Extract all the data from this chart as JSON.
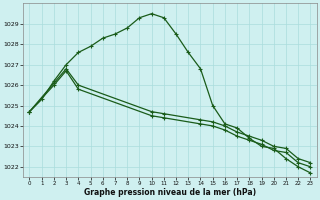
{
  "background_color": "#cff0f0",
  "grid_color": "#aadddd",
  "line_color": "#1a5c1a",
  "xlabel": "Graphe pression niveau de la mer (hPa)",
  "ylim": [
    1021.5,
    1030.0
  ],
  "xlim": [
    -0.5,
    23.5
  ],
  "yticks": [
    1022,
    1023,
    1024,
    1025,
    1026,
    1027,
    1028,
    1029
  ],
  "xticks": [
    0,
    1,
    2,
    3,
    4,
    5,
    6,
    7,
    8,
    9,
    10,
    11,
    12,
    13,
    14,
    15,
    16,
    17,
    18,
    19,
    20,
    21,
    22,
    23
  ],
  "series1_x": [
    0,
    1,
    2,
    3,
    4,
    5,
    6,
    7,
    8,
    9,
    10,
    11,
    12,
    13,
    14,
    15,
    16,
    17,
    18,
    19,
    20,
    21,
    22,
    23
  ],
  "series1_y": [
    1024.7,
    1025.3,
    1026.2,
    1027.0,
    1027.6,
    1027.9,
    1028.3,
    1028.5,
    1028.8,
    1029.3,
    1029.5,
    1029.3,
    1028.5,
    1027.6,
    1026.8,
    1025.0,
    1024.1,
    1023.9,
    1023.4,
    1023.0,
    1022.9,
    1022.4,
    1022.0,
    1021.7
  ],
  "series2_x": [
    0,
    2,
    3,
    4,
    10,
    11,
    14,
    15,
    16,
    17,
    18,
    19,
    20,
    21,
    22,
    23
  ],
  "series2_y": [
    1024.7,
    1026.1,
    1026.8,
    1026.0,
    1024.7,
    1024.6,
    1024.3,
    1024.2,
    1024.0,
    1023.7,
    1023.5,
    1023.3,
    1023.0,
    1022.9,
    1022.4,
    1022.2
  ],
  "series3_x": [
    0,
    2,
    3,
    4,
    10,
    11,
    14,
    15,
    16,
    17,
    18,
    19,
    20,
    21,
    22,
    23
  ],
  "series3_y": [
    1024.7,
    1026.0,
    1026.7,
    1025.8,
    1024.5,
    1024.4,
    1024.1,
    1024.0,
    1023.8,
    1023.5,
    1023.3,
    1023.1,
    1022.8,
    1022.7,
    1022.2,
    1022.0
  ]
}
